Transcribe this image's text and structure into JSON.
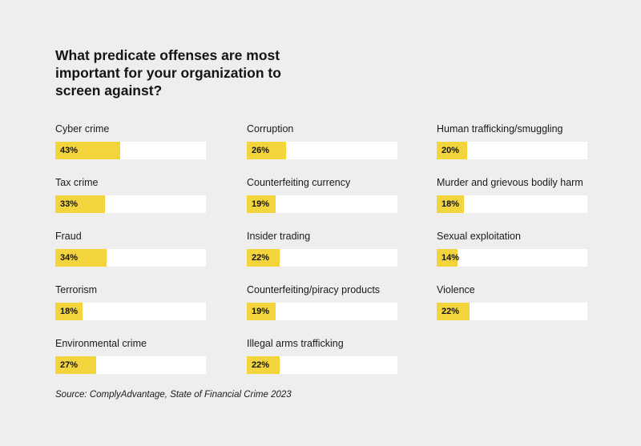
{
  "chart_data": {
    "type": "bar",
    "orientation": "horizontal",
    "title": "What predicate offenses are most important for your organization to screen against?",
    "xlim": [
      0,
      100
    ],
    "unit": "%",
    "categories": [
      "Cyber crime",
      "Tax crime",
      "Fraud",
      "Terrorism",
      "Environmental crime",
      "Corruption",
      "Counterfeiting currency",
      "Insider trading",
      "Counterfeiting/piracy products",
      "Illegal arms trafficking",
      "Human trafficking/smuggling",
      "Murder and grievous bodily harm",
      "Sexual exploitation",
      "Violence"
    ],
    "values": [
      43,
      33,
      34,
      18,
      27,
      26,
      19,
      22,
      19,
      22,
      20,
      18,
      14,
      22
    ],
    "value_labels": [
      "43%",
      "33%",
      "34%",
      "18%",
      "27%",
      "26%",
      "19%",
      "22%",
      "19%",
      "22%",
      "20%",
      "18%",
      "14%",
      "22%"
    ],
    "columns": [
      [
        0,
        1,
        2,
        3,
        4
      ],
      [
        5,
        6,
        7,
        8,
        9
      ],
      [
        10,
        11,
        12,
        13
      ]
    ],
    "source": "Source: ComplyAdvantage, State of Financial Crime 2023"
  },
  "colors": {
    "bar_fill": "#f2d43d",
    "track": "#ffffff",
    "background": "#eeeeee",
    "text": "#141414"
  }
}
